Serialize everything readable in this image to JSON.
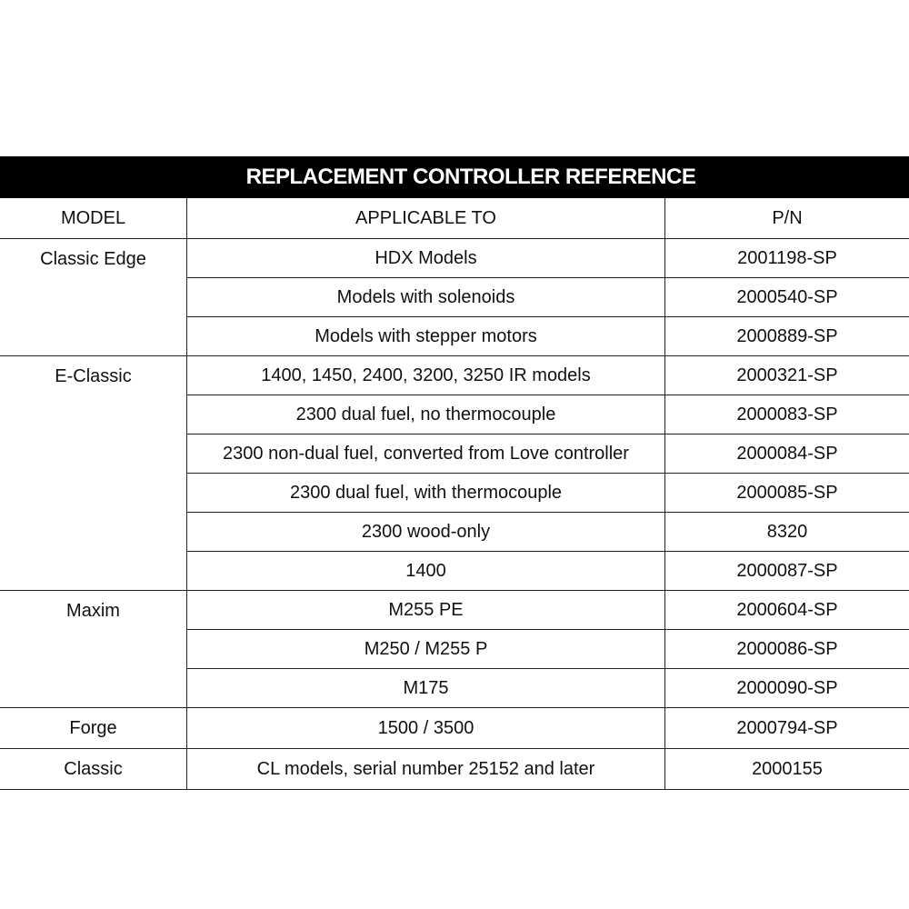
{
  "table": {
    "title": "REPLACEMENT CONTROLLER REFERENCE",
    "header": [
      "MODEL",
      "APPLICABLE TO",
      "P/N"
    ],
    "groups": [
      {
        "model": "Classic Edge",
        "rows": [
          {
            "applicable": "HDX Models",
            "pn": "2001198-SP"
          },
          {
            "applicable": "Models with solenoids",
            "pn": "2000540-SP"
          },
          {
            "applicable": "Models with stepper motors",
            "pn": "2000889-SP"
          }
        ]
      },
      {
        "model": "E-Classic",
        "rows": [
          {
            "applicable": "1400, 1450, 2400, 3200, 3250 IR models",
            "pn": "2000321-SP"
          },
          {
            "applicable": "2300 dual fuel, no thermocouple",
            "pn": "2000083-SP"
          },
          {
            "applicable": "2300 non-dual fuel, converted from Love controller",
            "pn": "2000084-SP"
          },
          {
            "applicable": "2300 dual fuel, with thermocouple",
            "pn": "2000085-SP"
          },
          {
            "applicable": "2300 wood-only",
            "pn": "8320"
          },
          {
            "applicable": "1400",
            "pn": "2000087-SP"
          }
        ]
      },
      {
        "model": "Maxim",
        "rows": [
          {
            "applicable": "M255 PE",
            "pn": "2000604-SP"
          },
          {
            "applicable": "M250 / M255 P",
            "pn": "2000086-SP"
          },
          {
            "applicable": "M175",
            "pn": "2000090-SP"
          }
        ]
      },
      {
        "model": "Forge",
        "rows": [
          {
            "applicable": "1500 / 3500",
            "pn": "2000794-SP"
          }
        ]
      },
      {
        "model": "Classic",
        "rows": [
          {
            "applicable": "CL models, serial number 25152 and later",
            "pn": "2000155"
          }
        ]
      }
    ]
  }
}
